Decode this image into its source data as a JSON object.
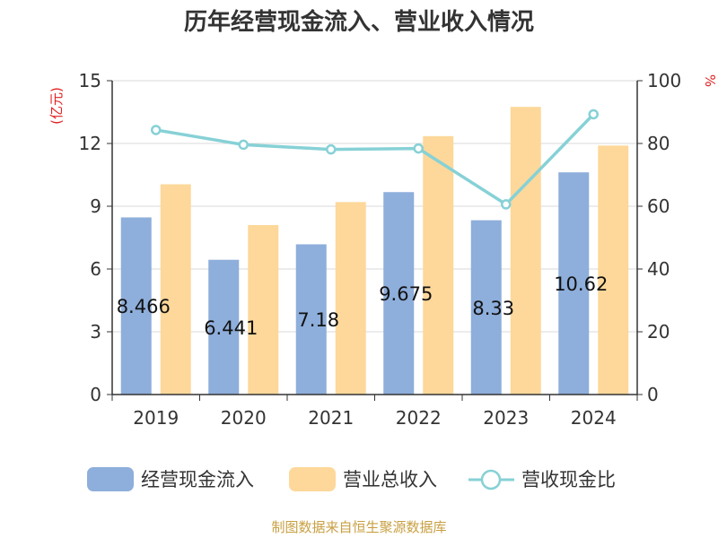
{
  "chart_data": {
    "type": "bar",
    "title": "历年经营现金流入、营业收入情况",
    "categories": [
      "2019",
      "2020",
      "2021",
      "2022",
      "2023",
      "2024"
    ],
    "series": [
      {
        "name": "经营现金流入",
        "type": "bar",
        "axis": "left",
        "color": "#8eaedb",
        "values": [
          8.466,
          6.441,
          7.18,
          9.675,
          8.33,
          10.62
        ],
        "data_labels": [
          "8.466",
          "6.441",
          "7.18",
          "9.675",
          "8.33",
          "10.62"
        ]
      },
      {
        "name": "营业总收入",
        "type": "bar",
        "axis": "left",
        "color": "#fdd89a",
        "values": [
          10.05,
          8.1,
          9.2,
          12.35,
          13.75,
          11.9
        ]
      },
      {
        "name": "营收现金比",
        "type": "line",
        "axis": "right",
        "color": "#86d1d6",
        "values": [
          84.3,
          79.6,
          78.1,
          78.4,
          60.6,
          89.3
        ]
      }
    ],
    "left_axis": {
      "label": "(亿元)",
      "min": 0,
      "max": 15,
      "ticks": [
        "0",
        "3",
        "6",
        "9",
        "12",
        "15"
      ]
    },
    "right_axis": {
      "label": "%",
      "min": 0,
      "max": 100,
      "ticks": [
        "0",
        "20",
        "40",
        "60",
        "80",
        "100"
      ]
    },
    "grid": true,
    "legend_position": "bottom",
    "source": "制图数据来自恒生聚源数据库",
    "colors": {
      "axis_label": "#e02020",
      "source": "#c8a043",
      "text": "#333333",
      "grid": "#d9d9d9"
    }
  }
}
